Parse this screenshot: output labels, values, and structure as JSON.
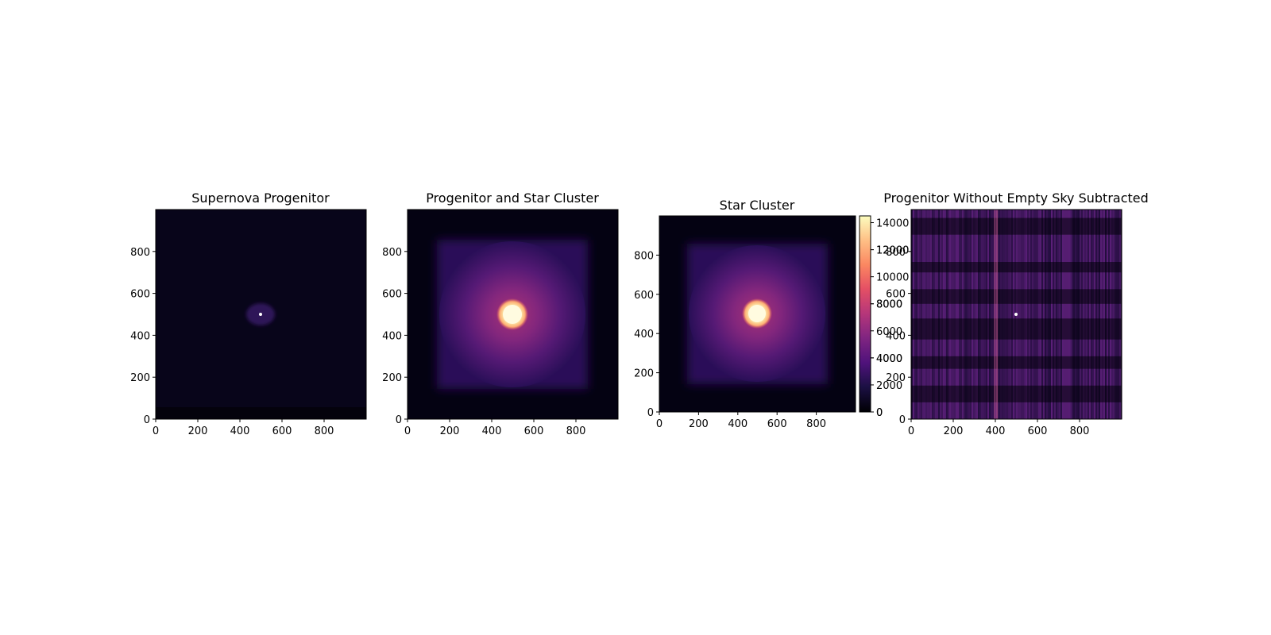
{
  "figure": {
    "panels": [
      {
        "title": "Supernova Progenitor"
      },
      {
        "title": "Progenitor and Star Cluster"
      },
      {
        "title": "Star Cluster"
      },
      {
        "title": "Progenitor Without Empty Sky Subtracted"
      }
    ]
  },
  "chart_data": [
    {
      "type": "heatmap",
      "title": "Supernova Progenitor",
      "xlim": [
        0,
        1000
      ],
      "ylim": [
        0,
        1000
      ],
      "x_ticks": [
        0,
        200,
        400,
        600,
        800
      ],
      "y_ticks": [
        0,
        200,
        400,
        600,
        800
      ],
      "colormap": "magma",
      "image": "faint dark field with a small scattered source and a single bright point near (500, 500)"
    },
    {
      "type": "heatmap",
      "title": "Progenitor and Star Cluster",
      "xlim": [
        0,
        1000
      ],
      "ylim": [
        0,
        1000
      ],
      "x_ticks": [
        0,
        200,
        400,
        600,
        800
      ],
      "y_ticks": [
        0,
        200,
        400,
        600,
        800
      ],
      "colormap": "magma",
      "image": "square diffuse glow (approx 150-850) with a bright saturated core near (500, 500)"
    },
    {
      "type": "heatmap",
      "title": "Star Cluster",
      "xlim": [
        0,
        1000
      ],
      "ylim": [
        0,
        1000
      ],
      "x_ticks": [
        0,
        200,
        400,
        600,
        800
      ],
      "y_ticks": [
        0,
        200,
        400,
        600,
        800
      ],
      "colormap": "magma",
      "image": "square diffuse glow (approx 150-850) with a bright saturated core near (500, 500)",
      "colorbar": {
        "range": [
          0,
          14500
        ],
        "tick_sets": [
          [
            0,
            4000,
            8000,
            12000
          ],
          [
            0,
            2000,
            4000,
            6000,
            8000,
            10000,
            12000,
            14000
          ]
        ]
      }
    },
    {
      "type": "heatmap",
      "title": "Progenitor Without Empty Sky Subtracted",
      "xlim": [
        0,
        1000
      ],
      "ylim": [
        0,
        1000
      ],
      "x_ticks": [
        0,
        200,
        400,
        600,
        800
      ],
      "y_ticks": [
        0,
        200,
        400,
        600,
        800
      ],
      "colormap": "magma",
      "image": "dark field with purple vertical column striping and horizontal bands; bright point near (500, 500)"
    }
  ]
}
